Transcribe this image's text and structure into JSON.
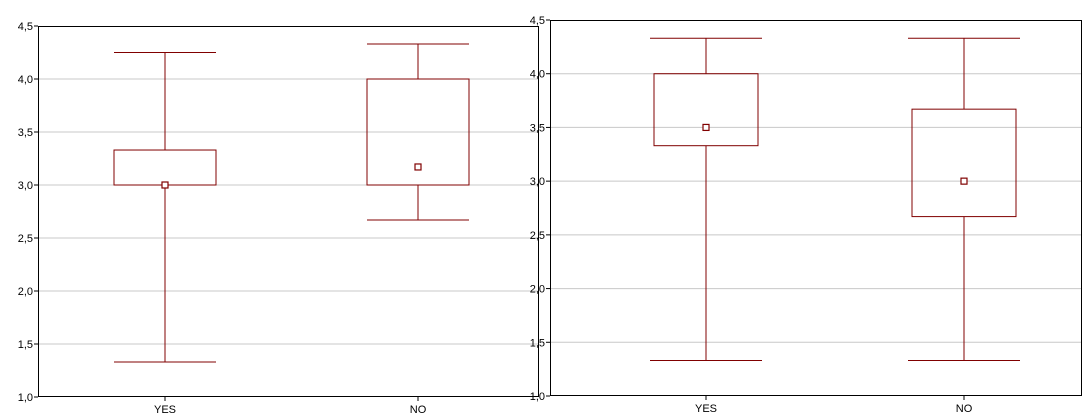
{
  "colors": {
    "box": "#800000",
    "grid": "#c8c8c8",
    "frame": "#000000",
    "background": "#ffffff"
  },
  "chart_data": [
    {
      "type": "box",
      "categories": [
        "YES",
        "NO"
      ],
      "ylim": [
        1.0,
        4.5
      ],
      "yticks": [
        "1,0",
        "1,5",
        "2,0",
        "2,5",
        "3,0",
        "3,5",
        "4,0",
        "4,5"
      ],
      "ytick_values": [
        1.0,
        1.5,
        2.0,
        2.5,
        3.0,
        3.5,
        4.0,
        4.5
      ],
      "grid": true,
      "boxes": [
        {
          "category": "YES",
          "whisker_low": 1.33,
          "q1": 3.0,
          "median": 3.0,
          "q3": 3.33,
          "whisker_high": 4.25
        },
        {
          "category": "NO",
          "whisker_low": 2.67,
          "q1": 3.0,
          "median": 3.17,
          "q3": 4.0,
          "whisker_high": 4.33
        }
      ]
    },
    {
      "type": "box",
      "categories": [
        "YES",
        "NO"
      ],
      "ylim": [
        1.0,
        4.5
      ],
      "yticks": [
        "1,0",
        "1,5",
        "2,0",
        "2,5",
        "3,0",
        "3,5",
        "4,0",
        "4,5"
      ],
      "ytick_values": [
        1.0,
        1.5,
        2.0,
        2.5,
        3.0,
        3.5,
        4.0,
        4.5
      ],
      "grid": true,
      "boxes": [
        {
          "category": "YES",
          "whisker_low": 1.33,
          "q1": 3.33,
          "median": 3.5,
          "q3": 4.0,
          "whisker_high": 4.33
        },
        {
          "category": "NO",
          "whisker_low": 1.33,
          "q1": 2.67,
          "median": 3.0,
          "q3": 3.67,
          "whisker_high": 4.33
        }
      ]
    }
  ]
}
